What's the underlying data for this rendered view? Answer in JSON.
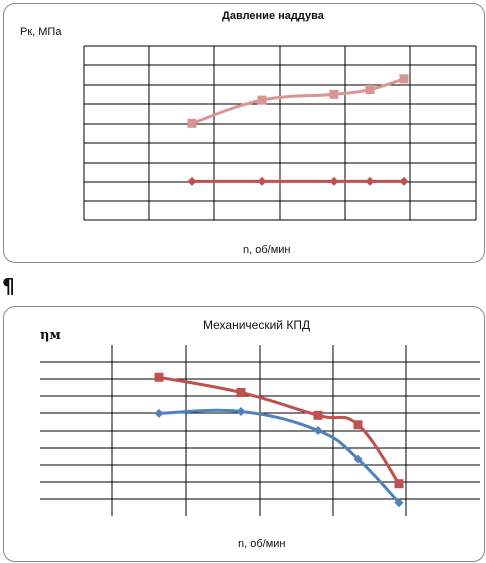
{
  "colors": {
    "grid": "#000000",
    "pink_series": "#d99594",
    "dark_red_series": "#c0504d",
    "red_series": "#c0504d",
    "blue_series": "#4f81bd"
  },
  "separator": "¶",
  "chart_data": [
    {
      "type": "line",
      "title": "Давление наддува",
      "ylabel": "Рк, МПа",
      "xlabel": "n, об/мин",
      "grid": true,
      "ylim": [
        0,
        9
      ],
      "x": [
        1,
        2,
        3,
        3.5,
        4
      ],
      "series": [
        {
          "marker": "square",
          "color": "#d99594",
          "values": [
            5.0,
            6.2,
            6.5,
            6.75,
            7.3
          ]
        },
        {
          "marker": "diamond",
          "color": "#c0504d",
          "values": [
            2.0,
            2.0,
            2.0,
            2.0,
            2.0
          ]
        }
      ]
    },
    {
      "type": "line",
      "title": "Механический КПД",
      "ylabel": "ηм",
      "xlabel": "n, об/мин",
      "grid": true,
      "ylim": [
        0,
        9
      ],
      "x": [
        1,
        2,
        3,
        3.5,
        4
      ],
      "series": [
        {
          "marker": "square",
          "color": "#c0504d",
          "values": [
            7.3,
            6.5,
            5.3,
            4.8,
            1.7
          ]
        },
        {
          "marker": "diamond",
          "color": "#4f81bd",
          "values": [
            5.4,
            5.5,
            4.5,
            3.0,
            0.7
          ]
        }
      ]
    }
  ]
}
